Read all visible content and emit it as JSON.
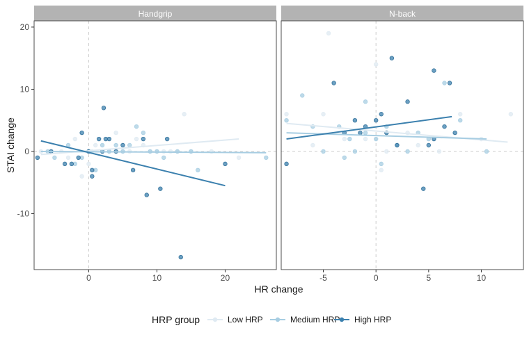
{
  "chart_data": {
    "type": "scatter",
    "xlabel": "HR change",
    "ylabel": "STAI change",
    "ylim": [
      -19,
      21
    ],
    "y_ticks": [
      -10,
      0,
      10,
      20
    ],
    "legend": {
      "title": "HRP group",
      "placement": "bottom",
      "entries": [
        "Low HRP",
        "Medium HRP",
        "High HRP"
      ]
    },
    "colors": {
      "Low HRP": "#dfeaf2",
      "Medium HRP": "#a7cde2",
      "High HRP": "#3b80ae",
      "strip": "#b3b3b3",
      "frame": "#4d4d4d",
      "reference_line": "#cccccc"
    },
    "grid": false,
    "reference_lines": {
      "x": 0,
      "y": 0
    },
    "facets": [
      {
        "title": "Handgrip",
        "xlim": [
          -8,
          27.5
        ],
        "x_ticks": [
          0,
          10,
          20
        ],
        "series": [
          {
            "name": "Low HRP",
            "points": [
              [
                -7,
                0
              ],
              [
                -4,
                0
              ],
              [
                -2,
                2
              ],
              [
                -1,
                -4
              ],
              [
                0,
                -2
              ],
              [
                1,
                1
              ],
              [
                2,
                0
              ],
              [
                3,
                0
              ],
              [
                4,
                3
              ],
              [
                5,
                0
              ],
              [
                6,
                0
              ],
              [
                7,
                2
              ],
              [
                8,
                1
              ],
              [
                9,
                0
              ],
              [
                10,
                0
              ],
              [
                11,
                0
              ],
              [
                12,
                0
              ],
              [
                13,
                0
              ],
              [
                14,
                6
              ],
              [
                15,
                0
              ],
              [
                18,
                0
              ],
              [
                22,
                -1
              ],
              [
                -3,
                -1
              ],
              [
                0.5,
                0
              ]
            ],
            "fit": [
              [
                -7,
                -0.5
              ],
              [
                22,
                2
              ]
            ]
          },
          {
            "name": "Medium HRP",
            "points": [
              [
                -6,
                0
              ],
              [
                -5,
                -1
              ],
              [
                -3,
                1
              ],
              [
                -2,
                -2
              ],
              [
                -1,
                -1
              ],
              [
                0,
                0
              ],
              [
                1,
                -3
              ],
              [
                2,
                1
              ],
              [
                3,
                0
              ],
              [
                4,
                1
              ],
              [
                5,
                0
              ],
              [
                7,
                4
              ],
              [
                8,
                3
              ],
              [
                10,
                0
              ],
              [
                11,
                -1
              ],
              [
                13,
                0
              ],
              [
                15,
                0
              ],
              [
                16,
                -3
              ],
              [
                26,
                -1
              ],
              [
                6,
                1
              ],
              [
                9,
                0
              ]
            ],
            "fit": [
              [
                -7,
                0
              ],
              [
                26,
                -0.2
              ]
            ]
          },
          {
            "name": "High HRP",
            "points": [
              [
                -7.5,
                -1
              ],
              [
                -5.5,
                0
              ],
              [
                -3.5,
                -2
              ],
              [
                -2.5,
                -2
              ],
              [
                -1.5,
                -1
              ],
              [
                -1,
                3
              ],
              [
                0,
                0
              ],
              [
                0.5,
                -3
              ],
              [
                0.5,
                -4
              ],
              [
                1.5,
                2
              ],
              [
                2,
                0
              ],
              [
                2.2,
                7
              ],
              [
                2.5,
                2
              ],
              [
                3,
                2
              ],
              [
                4,
                0
              ],
              [
                5,
                1
              ],
              [
                6.5,
                -3
              ],
              [
                8,
                2
              ],
              [
                8.5,
                -7
              ],
              [
                10.5,
                -6
              ],
              [
                11.5,
                2
              ],
              [
                13.5,
                -17
              ],
              [
                20,
                -2
              ]
            ],
            "fit": [
              [
                -7,
                1.7
              ],
              [
                20,
                -5.5
              ]
            ]
          }
        ]
      },
      {
        "title": "N-back",
        "xlim": [
          -9,
          14
        ],
        "x_ticks": [
          -5,
          0,
          5,
          10
        ],
        "series": [
          {
            "name": "Low HRP",
            "points": [
              [
                -8.5,
                6
              ],
              [
                -6,
                1
              ],
              [
                -5,
                6
              ],
              [
                -3,
                2
              ],
              [
                -1,
                2
              ],
              [
                0,
                14
              ],
              [
                1,
                0
              ],
              [
                2,
                1
              ],
              [
                4,
                1
              ],
              [
                6,
                0
              ],
              [
                8,
                6
              ],
              [
                10,
                2
              ],
              [
                12.8,
                6
              ],
              [
                -4.5,
                19
              ],
              [
                0.5,
                -3
              ],
              [
                3,
                3
              ]
            ],
            "fit": [
              [
                -8.5,
                4.5
              ],
              [
                12.5,
                1.5
              ]
            ]
          },
          {
            "name": "Medium HRP",
            "points": [
              [
                -8.5,
                5
              ],
              [
                -7,
                9
              ],
              [
                -6,
                4
              ],
              [
                -5,
                0
              ],
              [
                -3.5,
                4
              ],
              [
                -3,
                -1
              ],
              [
                -2.5,
                2
              ],
              [
                -2,
                0
              ],
              [
                -1,
                8
              ],
              [
                -1,
                3
              ],
              [
                0,
                2
              ],
              [
                0.5,
                -2
              ],
              [
                1,
                4
              ],
              [
                2,
                1
              ],
              [
                3,
                0
              ],
              [
                4,
                3
              ],
              [
                5,
                2
              ],
              [
                6.5,
                11
              ],
              [
                8,
                5
              ],
              [
                10.5,
                0
              ]
            ],
            "fit": [
              [
                -8.5,
                3
              ],
              [
                10.5,
                2
              ]
            ]
          },
          {
            "name": "High HRP",
            "points": [
              [
                -8.5,
                -2
              ],
              [
                -4,
                11
              ],
              [
                -3,
                3
              ],
              [
                -2,
                5
              ],
              [
                -1.5,
                3
              ],
              [
                -1,
                4
              ],
              [
                0,
                5
              ],
              [
                0.5,
                6
              ],
              [
                1,
                3
              ],
              [
                1.5,
                15
              ],
              [
                2,
                1
              ],
              [
                3,
                8
              ],
              [
                4.5,
                -6
              ],
              [
                5,
                1
              ],
              [
                5.5,
                2
              ],
              [
                5.5,
                13
              ],
              [
                6.5,
                4
              ],
              [
                7,
                11
              ],
              [
                7.5,
                3
              ]
            ],
            "fit": [
              [
                -8.5,
                2
              ],
              [
                7.2,
                5.6
              ]
            ]
          }
        ]
      }
    ]
  }
}
